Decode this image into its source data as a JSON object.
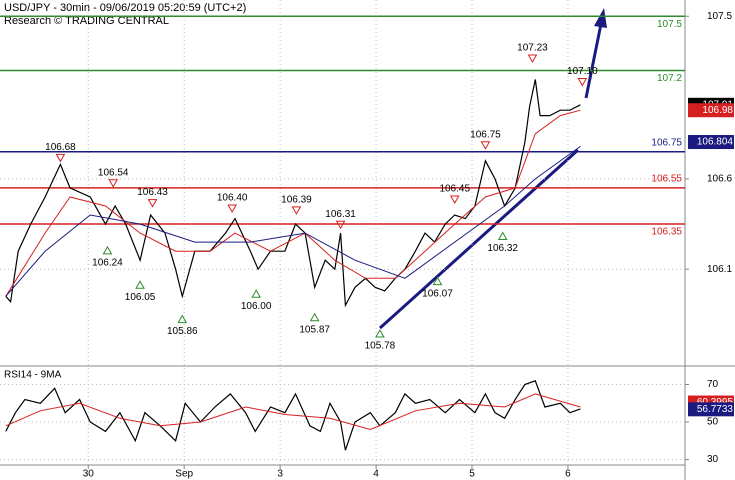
{
  "header": {
    "title": "USD/JPY - 30min - 09/06/2019 05:20:59 (UTC+2)",
    "source": "Research © TRADING CENTRAL"
  },
  "chart_data": [
    {
      "type": "line",
      "xlim": [
        -0.92,
        6.22
      ],
      "xticks": [
        {
          "value": 0,
          "label": "30"
        },
        {
          "value": 1,
          "label": "Sep"
        },
        {
          "value": 2,
          "label": "3"
        },
        {
          "value": 3,
          "label": "4"
        },
        {
          "value": 4,
          "label": "5"
        },
        {
          "value": 5,
          "label": "6"
        }
      ],
      "ylim": [
        105.57,
        107.59
      ],
      "yticks": [
        107.5,
        106.6,
        106.1
      ],
      "grid": true,
      "series": [
        {
          "color": "#000000",
          "x": [
            -0.86,
            -0.81,
            -0.73,
            -0.6,
            -0.45,
            -0.29,
            -0.19,
            0.02,
            0.18,
            0.28,
            0.39,
            0.54,
            0.65,
            0.8,
            0.91,
            0.98,
            1.11,
            1.27,
            1.43,
            1.53,
            1.69,
            1.77,
            1.9,
            2.05,
            2.16,
            2.26,
            2.36,
            2.47,
            2.57,
            2.63,
            2.68,
            2.78,
            2.89,
            2.99,
            3.09,
            3.2,
            3.3,
            3.41,
            3.51,
            3.61,
            3.72,
            3.82,
            3.93,
            4.03,
            4.14,
            4.24,
            4.34,
            4.45,
            4.55,
            4.6,
            4.66,
            4.71,
            4.81,
            4.92,
            5.02,
            5.13
          ],
          "values": [
            105.95,
            105.92,
            106.2,
            106.35,
            106.5,
            106.68,
            106.55,
            106.5,
            106.35,
            106.45,
            106.35,
            106.15,
            106.4,
            106.3,
            106.1,
            105.95,
            106.2,
            106.2,
            106.3,
            106.38,
            106.2,
            106.1,
            106.2,
            106.2,
            106.35,
            106.3,
            106.0,
            106.15,
            106.1,
            106.3,
            105.9,
            106.0,
            106.05,
            106.0,
            105.98,
            106.05,
            106.1,
            106.2,
            106.3,
            106.25,
            106.35,
            106.4,
            106.38,
            106.45,
            106.7,
            106.6,
            106.45,
            106.55,
            106.8,
            107.0,
            107.15,
            106.95,
            106.95,
            106.98,
            106.98,
            107.01
          ]
        },
        {
          "color": "#d62020",
          "x": [
            -0.86,
            -0.45,
            -0.19,
            0.18,
            0.54,
            0.91,
            1.27,
            1.53,
            1.9,
            2.26,
            2.57,
            2.89,
            3.2,
            3.51,
            3.82,
            4.14,
            4.45,
            4.66,
            4.92,
            5.13
          ],
          "values": [
            105.95,
            106.3,
            106.5,
            106.45,
            106.3,
            106.2,
            106.2,
            106.3,
            106.2,
            106.3,
            106.15,
            106.05,
            106.05,
            106.2,
            106.35,
            106.5,
            106.55,
            106.85,
            106.95,
            106.98
          ]
        },
        {
          "color": "#1a1a80",
          "x": [
            -0.86,
            -0.45,
            0.02,
            0.54,
            1.11,
            1.69,
            2.26,
            2.78,
            3.3,
            3.82,
            4.34,
            4.66,
            5.13
          ],
          "values": [
            105.95,
            106.2,
            106.4,
            106.35,
            106.25,
            106.25,
            106.3,
            106.15,
            106.05,
            106.25,
            106.45,
            106.6,
            106.78
          ]
        }
      ],
      "levels": [
        {
          "value": 107.5,
          "label": "107.5",
          "color": "#2e8b2e"
        },
        {
          "value": 107.2,
          "label": "107.2",
          "color": "#2e8b2e"
        },
        {
          "value": 106.75,
          "label": "106.75",
          "color": "#1a1a80"
        },
        {
          "value": 106.55,
          "label": "106.55",
          "color": "#d62020"
        },
        {
          "value": 106.35,
          "label": "106.35",
          "color": "#d62020"
        }
      ],
      "price_tags": [
        {
          "value": 107.01,
          "color": "#000000"
        },
        {
          "value": 106.98,
          "color": "#d62020"
        },
        {
          "value": 106.804,
          "color": "#1a1a80"
        }
      ],
      "annotations": [
        {
          "x": -0.29,
          "value": 106.68,
          "label": "106.68",
          "kind": "high"
        },
        {
          "x": 0.26,
          "value": 106.54,
          "label": "106.54",
          "kind": "high"
        },
        {
          "x": 0.67,
          "value": 106.43,
          "label": "106.43",
          "kind": "high"
        },
        {
          "x": 1.5,
          "value": 106.4,
          "label": "106.40",
          "kind": "high"
        },
        {
          "x": 2.17,
          "value": 106.39,
          "label": "106.39",
          "kind": "high"
        },
        {
          "x": 2.63,
          "value": 106.31,
          "label": "106.31",
          "kind": "high"
        },
        {
          "x": 3.82,
          "value": 106.45,
          "label": "106.45",
          "kind": "high"
        },
        {
          "x": 4.14,
          "value": 106.75,
          "label": "106.75",
          "kind": "high"
        },
        {
          "x": 4.63,
          "value": 107.23,
          "label": "107.23",
          "kind": "high"
        },
        {
          "x": 5.15,
          "value": 107.1,
          "label": "107.10",
          "kind": "high"
        },
        {
          "x": 0.2,
          "value": 106.24,
          "label": "106.24",
          "kind": "low"
        },
        {
          "x": 0.54,
          "value": 106.05,
          "label": "106.05",
          "kind": "low"
        },
        {
          "x": 0.98,
          "value": 105.86,
          "label": "105.86",
          "kind": "low"
        },
        {
          "x": 1.75,
          "value": 106.0,
          "label": "106.00",
          "kind": "low"
        },
        {
          "x": 2.36,
          "value": 105.87,
          "label": "105.87",
          "kind": "low"
        },
        {
          "x": 3.04,
          "value": 105.78,
          "label": "105.78",
          "kind": "low"
        },
        {
          "x": 3.64,
          "value": 106.07,
          "label": "106.07",
          "kind": "low"
        },
        {
          "x": 4.32,
          "value": 106.32,
          "label": "106.32",
          "kind": "low"
        }
      ]
    },
    {
      "type": "line",
      "title": "RSI14 - 9MA",
      "xlim": [
        -0.92,
        6.22
      ],
      "ylim": [
        27.1,
        78.8
      ],
      "yticks": [
        70,
        50,
        30
      ],
      "grid": true,
      "series": [
        {
          "color": "#000000",
          "x": [
            -0.86,
            -0.76,
            -0.66,
            -0.5,
            -0.35,
            -0.24,
            -0.09,
            0.02,
            0.18,
            0.33,
            0.49,
            0.59,
            0.75,
            0.91,
            1.01,
            1.17,
            1.32,
            1.48,
            1.64,
            1.74,
            1.9,
            2.05,
            2.16,
            2.31,
            2.42,
            2.52,
            2.63,
            2.68,
            2.78,
            2.94,
            3.04,
            3.2,
            3.3,
            3.41,
            3.56,
            3.72,
            3.87,
            4.03,
            4.14,
            4.24,
            4.34,
            4.45,
            4.55,
            4.66,
            4.76,
            4.92,
            5.02,
            5.13
          ],
          "values": [
            45,
            55,
            62,
            60,
            68,
            55,
            62,
            50,
            45,
            55,
            40,
            55,
            48,
            40,
            60,
            50,
            58,
            65,
            55,
            45,
            58,
            55,
            65,
            48,
            45,
            60,
            50,
            35,
            50,
            55,
            48,
            55,
            65,
            60,
            62,
            55,
            62,
            55,
            65,
            55,
            52,
            62,
            70,
            72,
            58,
            60,
            55,
            57
          ]
        },
        {
          "color": "#d62020",
          "x": [
            -0.86,
            -0.5,
            -0.09,
            0.33,
            0.75,
            1.17,
            1.64,
            2.05,
            2.52,
            2.94,
            3.41,
            3.87,
            4.34,
            4.66,
            5.13
          ],
          "values": [
            48,
            56,
            60,
            52,
            48,
            50,
            58,
            54,
            52,
            46,
            56,
            60,
            58,
            65,
            58
          ]
        }
      ],
      "price_tags": [
        {
          "value": 60.3995,
          "color": "#d62020"
        },
        {
          "value": 56.7733,
          "color": "#1a1a80"
        }
      ]
    }
  ]
}
